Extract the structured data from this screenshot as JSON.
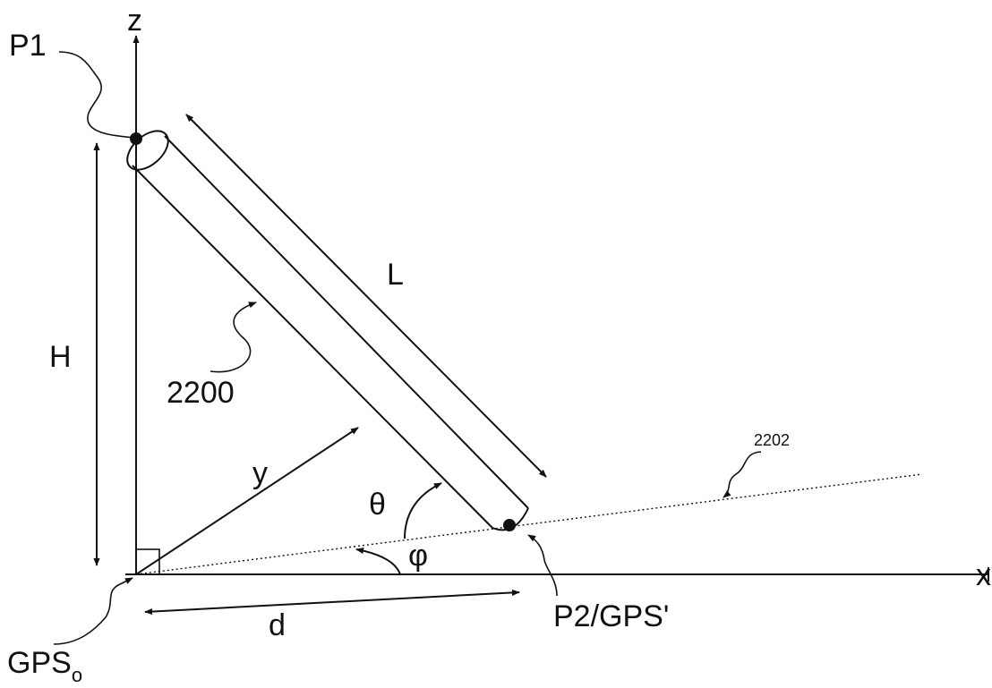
{
  "labels": {
    "z_axis": "z",
    "x_axis": "x",
    "p1": "P1",
    "height": "H",
    "length": "L",
    "pole_ref": "2200",
    "line_ref": "2202",
    "y_axis": "y",
    "theta": "θ",
    "phi": "φ",
    "distance": "d",
    "p2": "P2/GPS'",
    "gps_origin_base": "GPS",
    "gps_origin_sub": "o"
  }
}
